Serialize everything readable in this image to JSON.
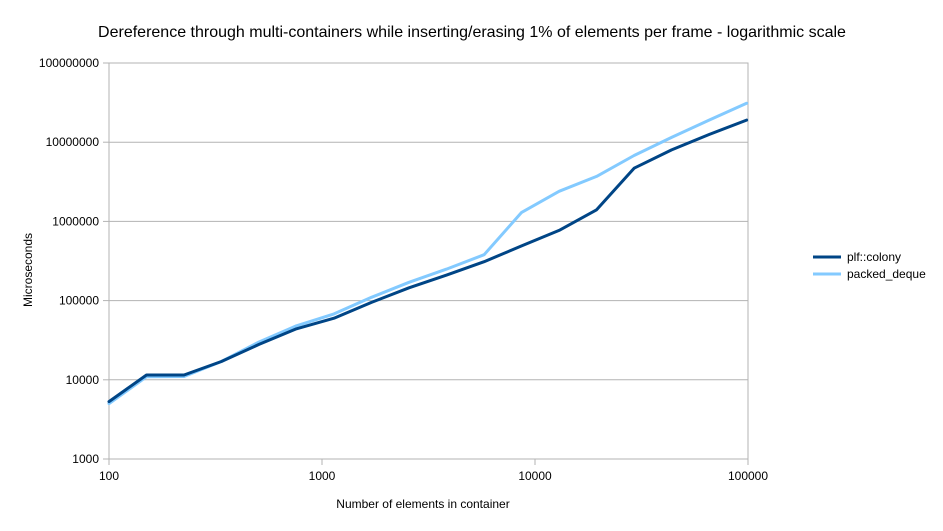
{
  "chart_data": {
    "type": "line",
    "title": "Dereference through multi-containers while inserting/erasing 1% of elements per frame - logarithmic scale",
    "xlabel": "Number of elements in container",
    "ylabel": "Microseconds",
    "xscale": "log",
    "yscale": "log",
    "xlim": [
      100,
      100000
    ],
    "ylim": [
      1000,
      100000000
    ],
    "x_ticks": [
      100,
      1000,
      10000,
      100000
    ],
    "x_tick_labels": [
      "100",
      "1000",
      "10000",
      "100000"
    ],
    "y_ticks": [
      1000,
      10000,
      100000,
      1000000,
      10000000,
      100000000
    ],
    "y_tick_labels": [
      "1000",
      "10000",
      "100000",
      "1000000",
      "10000000",
      "100000000"
    ],
    "grid": "horizontal",
    "legend_position": "right",
    "series": [
      {
        "name": "plf::colony",
        "color": "#004586",
        "x": [
          100,
          150,
          225,
          337,
          506,
          759,
          1139,
          1708,
          2562,
          3844,
          5766,
          8649,
          12974,
          19461,
          29192,
          43789,
          65684,
          98526
        ],
        "y": [
          5300,
          11500,
          11500,
          17000,
          28000,
          44000,
          60000,
          95000,
          145000,
          210000,
          310000,
          490000,
          770000,
          1400000,
          4700000,
          8000000,
          12500000,
          19000000
        ]
      },
      {
        "name": "packed_deque",
        "color": "#83caff",
        "x": [
          100,
          150,
          225,
          337,
          506,
          759,
          1139,
          1708,
          2562,
          3844,
          5766,
          8649,
          12974,
          19461,
          29192,
          43789,
          65684,
          98526
        ],
        "y": [
          5000,
          10900,
          11000,
          17000,
          30000,
          48000,
          68000,
          110000,
          170000,
          250000,
          380000,
          1300000,
          2400000,
          3700000,
          6800000,
          11500000,
          19000000,
          31000000
        ]
      }
    ]
  }
}
